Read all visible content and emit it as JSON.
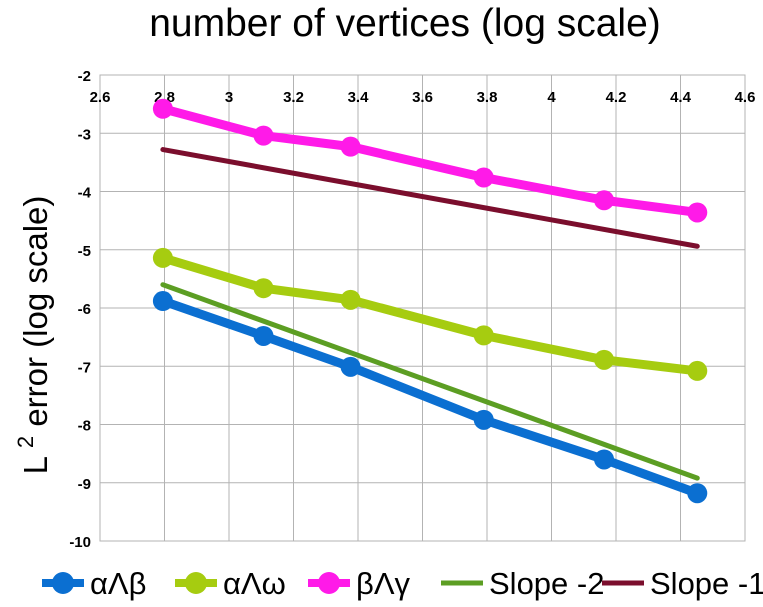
{
  "chart_data": {
    "type": "line",
    "title": "number of vertices (log scale)",
    "xlabel": "",
    "ylabel_main": "L",
    "ylabel_sup": "2",
    "ylabel_rest": " error (log scale)",
    "xlim": [
      2.6,
      4.6
    ],
    "ylim": [
      -10,
      -2
    ],
    "xticks": [
      "2.6",
      "2.8",
      "3",
      "3.2",
      "3.4",
      "3.6",
      "3.8",
      "4",
      "4.2",
      "4.4",
      "4.6"
    ],
    "yticks": [
      "-2",
      "-3",
      "-4",
      "-5",
      "-6",
      "-7",
      "-8",
      "-9",
      "-10"
    ],
    "x_axis_position": "top",
    "grid": true,
    "legend_position": "bottom",
    "series": [
      {
        "name": "αΛβ",
        "color": "#0b6fd1",
        "markers": true,
        "x": [
          2.795,
          3.107,
          3.377,
          3.79,
          4.163,
          4.452
        ],
        "y": [
          -5.88,
          -6.48,
          -7.01,
          -7.92,
          -8.6,
          -9.18
        ]
      },
      {
        "name": "αΛω",
        "color": "#a6cc10",
        "markers": true,
        "x": [
          2.795,
          3.107,
          3.377,
          3.79,
          4.163,
          4.452
        ],
        "y": [
          -5.14,
          -5.66,
          -5.86,
          -6.47,
          -6.89,
          -7.08
        ]
      },
      {
        "name": "βΛγ",
        "color": "#ff1ae8",
        "markers": true,
        "x": [
          2.795,
          3.107,
          3.377,
          3.79,
          4.163,
          4.452
        ],
        "y": [
          -2.58,
          -3.04,
          -3.23,
          -3.76,
          -4.15,
          -4.36
        ]
      },
      {
        "name": "Slope -2",
        "color": "#5c9e23",
        "markers": false,
        "x": [
          2.795,
          4.452
        ],
        "y": [
          -5.6,
          -8.92
        ]
      },
      {
        "name": "Slope -1",
        "color": "#7b0e2d",
        "markers": false,
        "x": [
          2.795,
          4.452
        ],
        "y": [
          -3.28,
          -4.94
        ]
      }
    ]
  }
}
